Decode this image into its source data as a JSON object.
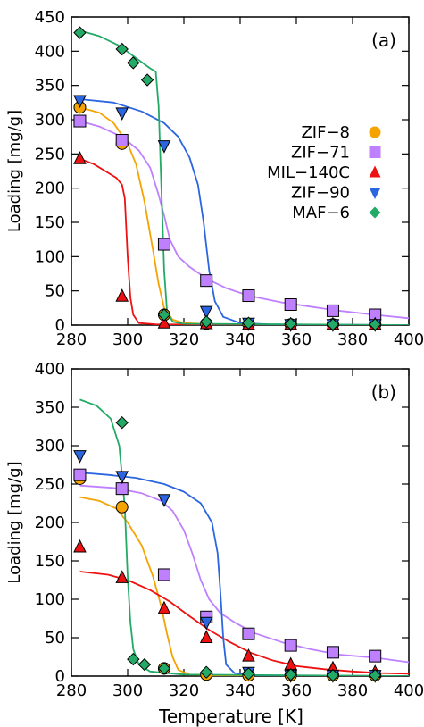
{
  "chart_data": [
    {
      "type": "line",
      "panel_label": "(a)",
      "xlabel": "",
      "ylabel": "Loading [mg/g]",
      "xlim": [
        280,
        400
      ],
      "ylim": [
        0,
        450
      ],
      "xticks": [
        280,
        300,
        320,
        340,
        360,
        380,
        400
      ],
      "yticks": [
        0,
        50,
        100,
        150,
        200,
        250,
        300,
        350,
        400,
        450
      ],
      "legend_position": "right, middle",
      "series": [
        {
          "name": "ZIF-8",
          "color": "#f5a300",
          "marker": "circle",
          "points": [
            [
              283,
              318
            ],
            [
              298,
              265
            ],
            [
              313,
              15
            ],
            [
              328,
              2
            ],
            [
              343,
              1
            ],
            [
              358,
              1
            ],
            [
              373,
              1
            ],
            [
              388,
              1
            ]
          ],
          "curve": [
            [
              283,
              318
            ],
            [
              290,
              310
            ],
            [
              295,
              295
            ],
            [
              300,
              265
            ],
            [
              303,
              235
            ],
            [
              306,
              180
            ],
            [
              309,
              110
            ],
            [
              311,
              60
            ],
            [
              313,
              25
            ],
            [
              316,
              8
            ],
            [
              320,
              3
            ],
            [
              330,
              1
            ],
            [
              360,
              0
            ],
            [
              400,
              0
            ]
          ]
        },
        {
          "name": "ZIF-71",
          "color": "#bf80ff",
          "marker": "square",
          "points": [
            [
              283,
              298
            ],
            [
              298,
              270
            ],
            [
              313,
              118
            ],
            [
              328,
              65
            ],
            [
              343,
              43
            ],
            [
              358,
              30
            ],
            [
              373,
              21
            ],
            [
              388,
              15
            ]
          ],
          "curve": [
            [
              283,
              298
            ],
            [
              290,
              290
            ],
            [
              298,
              275
            ],
            [
              304,
              255
            ],
            [
              308,
              230
            ],
            [
              311,
              190
            ],
            [
              313,
              160
            ],
            [
              315,
              125
            ],
            [
              318,
              100
            ],
            [
              322,
              85
            ],
            [
              328,
              68
            ],
            [
              335,
              54
            ],
            [
              343,
              43
            ],
            [
              355,
              33
            ],
            [
              365,
              27
            ],
            [
              375,
              21
            ],
            [
              388,
              15
            ],
            [
              400,
              10
            ]
          ]
        },
        {
          "name": "MIL-140C",
          "color": "#ee1111",
          "marker": "triangle-up",
          "points": [
            [
              283,
              243
            ],
            [
              298,
              42
            ],
            [
              313,
              3
            ],
            [
              328,
              2
            ],
            [
              343,
              1
            ],
            [
              358,
              1
            ],
            [
              373,
              1
            ],
            [
              388,
              1
            ]
          ],
          "curve": [
            [
              283,
              243
            ],
            [
              288,
              235
            ],
            [
              292,
              225
            ],
            [
              296,
              215
            ],
            [
              298,
              205
            ],
            [
              299,
              185
            ],
            [
              300,
              100
            ],
            [
              301,
              40
            ],
            [
              302,
              15
            ],
            [
              304,
              3
            ],
            [
              310,
              1
            ],
            [
              400,
              0
            ]
          ]
        },
        {
          "name": "ZIF-90",
          "color": "#2b66e0",
          "marker": "triangle-down",
          "points": [
            [
              283,
              328
            ],
            [
              298,
              310
            ],
            [
              313,
              262
            ],
            [
              328,
              20
            ],
            [
              343,
              3
            ],
            [
              358,
              1
            ],
            [
              373,
              1
            ],
            [
              388,
              1
            ]
          ],
          "curve": [
            [
              283,
              330
            ],
            [
              295,
              325
            ],
            [
              305,
              312
            ],
            [
              313,
              295
            ],
            [
              318,
              275
            ],
            [
              322,
              245
            ],
            [
              325,
              205
            ],
            [
              327,
              150
            ],
            [
              329,
              80
            ],
            [
              331,
              35
            ],
            [
              334,
              12
            ],
            [
              340,
              3
            ],
            [
              350,
              1
            ],
            [
              400,
              0
            ]
          ]
        },
        {
          "name": "MAF-6",
          "color": "#22aa66",
          "marker": "diamond",
          "points": [
            [
              283,
              427
            ],
            [
              298,
              403
            ],
            [
              302,
              383
            ],
            [
              307,
              358
            ],
            [
              313,
              15
            ],
            [
              328,
              5
            ],
            [
              343,
              3
            ],
            [
              358,
              2
            ],
            [
              373,
              1
            ],
            [
              388,
              1
            ]
          ],
          "curve": [
            [
              283,
              430
            ],
            [
              290,
              422
            ],
            [
              297,
              408
            ],
            [
              303,
              390
            ],
            [
              308,
              375
            ],
            [
              310,
              370
            ],
            [
              311,
              320
            ],
            [
              312,
              200
            ],
            [
              313,
              80
            ],
            [
              314,
              20
            ],
            [
              316,
              5
            ],
            [
              320,
              2
            ],
            [
              400,
              0
            ]
          ]
        }
      ]
    },
    {
      "type": "line",
      "panel_label": "(b)",
      "xlabel": "Temperature [K]",
      "ylabel": "Loading [mg/g]",
      "xlim": [
        280,
        400
      ],
      "ylim": [
        0,
        400
      ],
      "xticks": [
        280,
        300,
        320,
        340,
        360,
        380,
        400
      ],
      "yticks": [
        0,
        50,
        100,
        150,
        200,
        250,
        300,
        350,
        400
      ],
      "series": [
        {
          "name": "ZIF-8",
          "color": "#f5a300",
          "marker": "circle",
          "points": [
            [
              283,
              257
            ],
            [
              298,
              220
            ],
            [
              313,
              10
            ],
            [
              328,
              2
            ],
            [
              343,
              1
            ],
            [
              358,
              1
            ],
            [
              373,
              1
            ],
            [
              388,
              1
            ]
          ],
          "curve": [
            [
              283,
              233
            ],
            [
              290,
              228
            ],
            [
              296,
              218
            ],
            [
              300,
              200
            ],
            [
              305,
              170
            ],
            [
              309,
              130
            ],
            [
              312,
              90
            ],
            [
              314,
              55
            ],
            [
              316,
              25
            ],
            [
              318,
              8
            ],
            [
              322,
              2
            ],
            [
              330,
              1
            ],
            [
              400,
              0
            ]
          ]
        },
        {
          "name": "ZIF-71",
          "color": "#bf80ff",
          "marker": "square",
          "points": [
            [
              283,
              262
            ],
            [
              298,
              244
            ],
            [
              313,
              132
            ],
            [
              328,
              77
            ],
            [
              343,
              55
            ],
            [
              358,
              40
            ],
            [
              373,
              31
            ],
            [
              388,
              26
            ]
          ],
          "curve": [
            [
              283,
              248
            ],
            [
              295,
              245
            ],
            [
              305,
              238
            ],
            [
              312,
              228
            ],
            [
              316,
              215
            ],
            [
              320,
              190
            ],
            [
              323,
              160
            ],
            [
              326,
              125
            ],
            [
              329,
              100
            ],
            [
              333,
              82
            ],
            [
              338,
              70
            ],
            [
              345,
              56
            ],
            [
              355,
              44
            ],
            [
              365,
              35
            ],
            [
              375,
              28
            ],
            [
              388,
              24
            ],
            [
              400,
              18
            ]
          ]
        },
        {
          "name": "MIL-140C",
          "color": "#ee1111",
          "marker": "triangle-up",
          "points": [
            [
              283,
              168
            ],
            [
              298,
              128
            ],
            [
              313,
              88
            ],
            [
              328,
              50
            ],
            [
              343,
              26
            ],
            [
              358,
              15
            ],
            [
              373,
              10
            ],
            [
              388,
              5
            ]
          ],
          "curve": [
            [
              283,
              136
            ],
            [
              293,
              132
            ],
            [
              300,
              125
            ],
            [
              308,
              112
            ],
            [
              315,
              97
            ],
            [
              322,
              78
            ],
            [
              329,
              60
            ],
            [
              336,
              45
            ],
            [
              344,
              30
            ],
            [
              352,
              20
            ],
            [
              360,
              13
            ],
            [
              370,
              9
            ],
            [
              380,
              6
            ],
            [
              390,
              4
            ],
            [
              400,
              3
            ]
          ]
        },
        {
          "name": "ZIF-90",
          "color": "#2b66e0",
          "marker": "triangle-down",
          "points": [
            [
              283,
              287
            ],
            [
              298,
              260
            ],
            [
              313,
              230
            ],
            [
              328,
              70
            ],
            [
              343,
              5
            ],
            [
              358,
              1
            ],
            [
              373,
              1
            ],
            [
              388,
              1
            ]
          ],
          "curve": [
            [
              283,
              265
            ],
            [
              293,
              262
            ],
            [
              303,
              258
            ],
            [
              313,
              250
            ],
            [
              320,
              240
            ],
            [
              326,
              225
            ],
            [
              330,
              200
            ],
            [
              332,
              160
            ],
            [
              333,
              110
            ],
            [
              334,
              50
            ],
            [
              335,
              15
            ],
            [
              338,
              4
            ],
            [
              345,
              1
            ],
            [
              400,
              0
            ]
          ]
        },
        {
          "name": "MAF-6",
          "color": "#22aa66",
          "marker": "diamond",
          "points": [
            [
              298,
              330
            ],
            [
              302,
              22
            ],
            [
              306,
              15
            ],
            [
              313,
              10
            ],
            [
              328,
              5
            ],
            [
              343,
              3
            ],
            [
              358,
              2
            ],
            [
              373,
              1
            ],
            [
              388,
              1
            ]
          ],
          "curve": [
            [
              283,
              360
            ],
            [
              289,
              352
            ],
            [
              294,
              335
            ],
            [
              297,
              300
            ],
            [
              299,
              220
            ],
            [
              300,
              130
            ],
            [
              301,
              70
            ],
            [
              302,
              35
            ],
            [
              304,
              15
            ],
            [
              308,
              6
            ],
            [
              320,
              2
            ],
            [
              400,
              0
            ]
          ]
        }
      ]
    }
  ]
}
